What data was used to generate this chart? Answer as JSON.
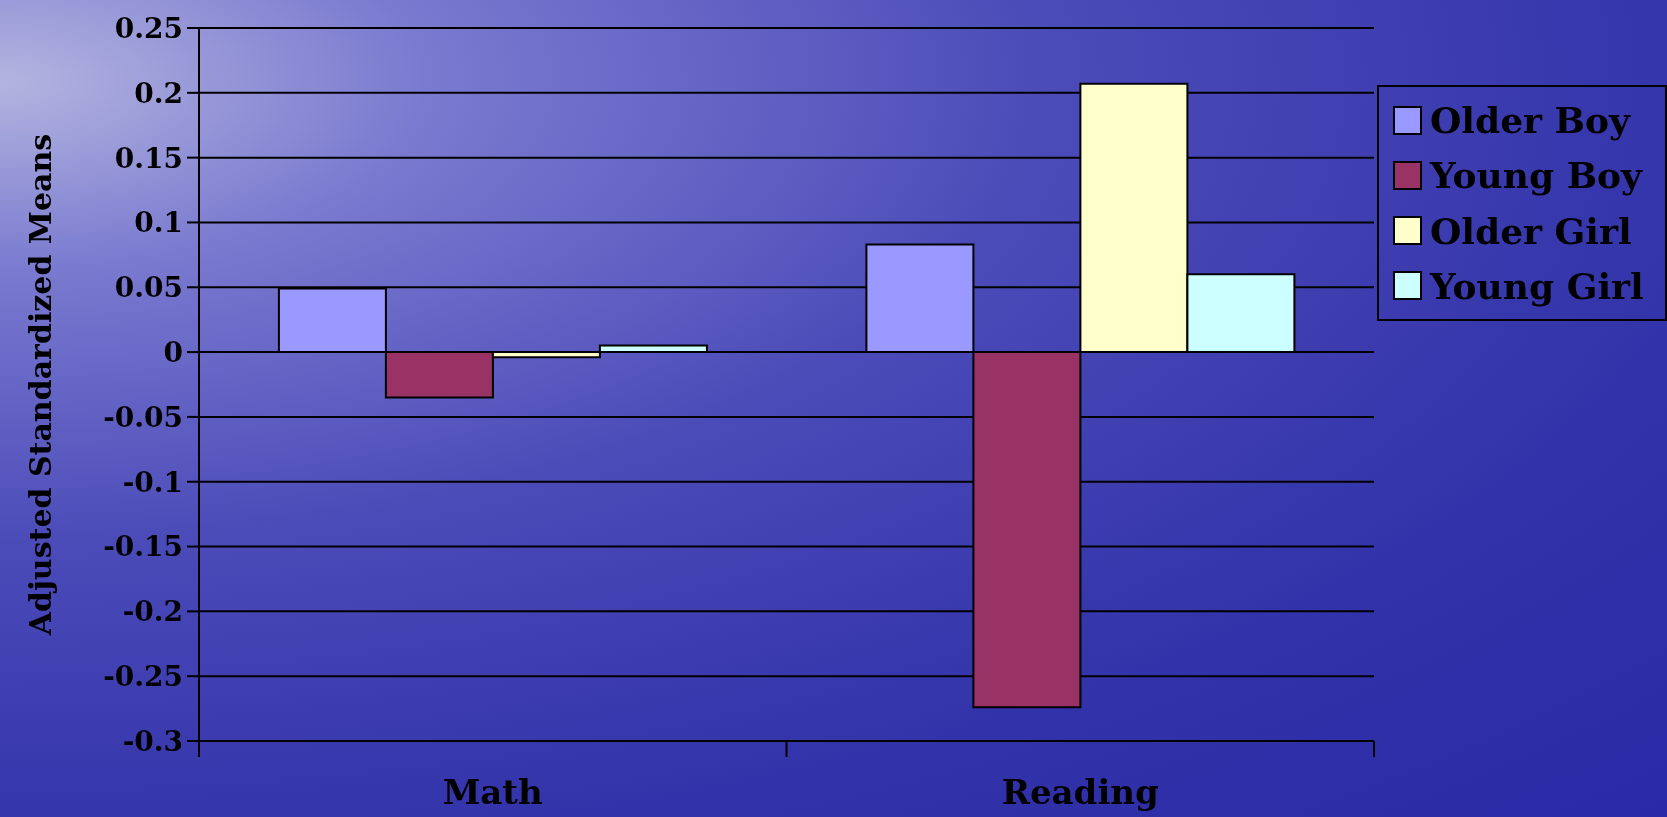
{
  "chart_data": {
    "type": "bar",
    "categories": [
      "Math",
      "Reading"
    ],
    "series": [
      {
        "name": "Older Boy",
        "color": "#9999ff",
        "values": [
          0.049,
          0.083
        ]
      },
      {
        "name": "Young Boy",
        "color": "#993366",
        "values": [
          -0.035,
          -0.274
        ]
      },
      {
        "name": "Older Girl",
        "color": "#ffffcc",
        "values": [
          -0.004,
          0.207
        ]
      },
      {
        "name": "Young Girl",
        "color": "#ccffff",
        "values": [
          0.005,
          0.06
        ]
      }
    ],
    "ylabel": "Adjusted Standardized Means",
    "ylim": [
      -0.3,
      0.25
    ],
    "yticks": [
      -0.3,
      -0.25,
      -0.2,
      -0.15,
      -0.1,
      -0.05,
      0,
      0.05,
      0.1,
      0.15,
      0.2,
      0.25
    ],
    "grid": "y",
    "legend": "right"
  }
}
